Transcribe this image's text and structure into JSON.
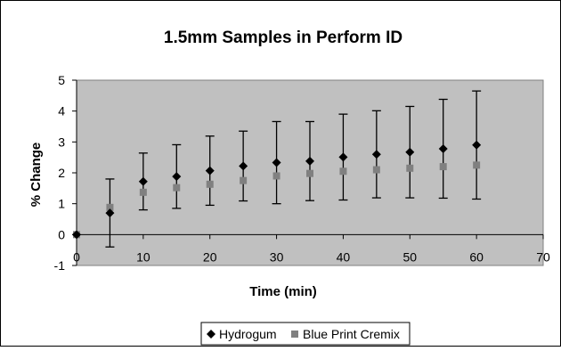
{
  "chart_data": {
    "type": "scatter",
    "title": "1.5mm Samples in Perform ID",
    "xlabel": "Time (min)",
    "ylabel": "% Change",
    "xlim": [
      0,
      70
    ],
    "ylim": [
      -1,
      5
    ],
    "xticks": [
      0,
      10,
      20,
      30,
      40,
      50,
      60,
      70
    ],
    "yticks": [
      -1,
      0,
      1,
      2,
      3,
      4,
      5
    ],
    "grid": false,
    "plot_background": "#c0c0c0",
    "legend_position": "bottom",
    "series": [
      {
        "name": "Hydrogum",
        "marker": "diamond",
        "color": "#000000",
        "x": [
          0,
          5,
          10,
          15,
          20,
          25,
          30,
          35,
          40,
          45,
          50,
          55,
          60
        ],
        "y": [
          0,
          0.7,
          1.72,
          1.88,
          2.07,
          2.22,
          2.33,
          2.38,
          2.51,
          2.6,
          2.67,
          2.78,
          2.9
        ],
        "error": [
          0,
          1.1,
          0.92,
          1.03,
          1.12,
          1.13,
          1.33,
          1.28,
          1.39,
          1.41,
          1.48,
          1.6,
          1.75
        ]
      },
      {
        "name": "Blue Print Cremix",
        "marker": "square",
        "color": "#808080",
        "x": [
          0,
          5,
          10,
          15,
          20,
          25,
          30,
          35,
          40,
          45,
          50,
          55,
          60
        ],
        "y": [
          0,
          0.88,
          1.37,
          1.52,
          1.63,
          1.75,
          1.9,
          1.98,
          2.05,
          2.1,
          2.15,
          2.2,
          2.25
        ]
      }
    ]
  }
}
